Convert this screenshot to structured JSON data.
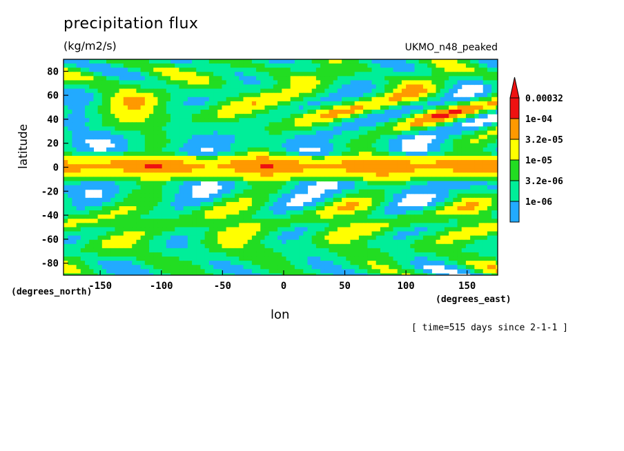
{
  "title": "precipitation flux",
  "units": "(kg/m2/s)",
  "model": "UKMO_n48_peaked",
  "time_note": "[ time=515 days since 2-1-1 ]",
  "chart_data": {
    "type": "heatmap",
    "xlabel": "lon",
    "ylabel": "latitude",
    "x_units": "(degrees_east)",
    "y_units": "(degrees_north)",
    "xlim": [
      -180,
      175
    ],
    "ylim": [
      -90,
      90
    ],
    "x_ticks": [
      -150,
      -100,
      -50,
      0,
      50,
      100,
      150
    ],
    "y_ticks": [
      80,
      60,
      40,
      20,
      0,
      -20,
      -40,
      -60,
      -80
    ],
    "colorbar": {
      "labels": [
        "0.00032",
        "1e-04",
        "3.2e-05",
        "1e-05",
        "3.2e-06",
        "1e-06"
      ],
      "colors": [
        "#ee1111",
        "#ff9900",
        "#ffff00",
        "#22dd22",
        "#00ee99",
        "#22aaff"
      ],
      "extend": "max"
    },
    "zonal_profile_level_index": [
      {
        "lat": 85,
        "level": 2.4
      },
      {
        "lat": 75,
        "level": 2.8
      },
      {
        "lat": 65,
        "level": 2.6
      },
      {
        "lat": 55,
        "level": 3.0
      },
      {
        "lat": 45,
        "level": 3.2
      },
      {
        "lat": 35,
        "level": 2.6
      },
      {
        "lat": 25,
        "level": 1.8
      },
      {
        "lat": 15,
        "level": 1.6
      },
      {
        "lat": 5,
        "level": 3.9
      },
      {
        "lat": 0,
        "level": 4.4
      },
      {
        "lat": -5,
        "level": 3.6
      },
      {
        "lat": -15,
        "level": 1.5
      },
      {
        "lat": -25,
        "level": 1.9
      },
      {
        "lat": -35,
        "level": 2.8
      },
      {
        "lat": -45,
        "level": 3.1
      },
      {
        "lat": -55,
        "level": 2.9
      },
      {
        "lat": -65,
        "level": 2.7
      },
      {
        "lat": -75,
        "level": 2.5
      },
      {
        "lat": -85,
        "level": 2.2
      }
    ]
  }
}
